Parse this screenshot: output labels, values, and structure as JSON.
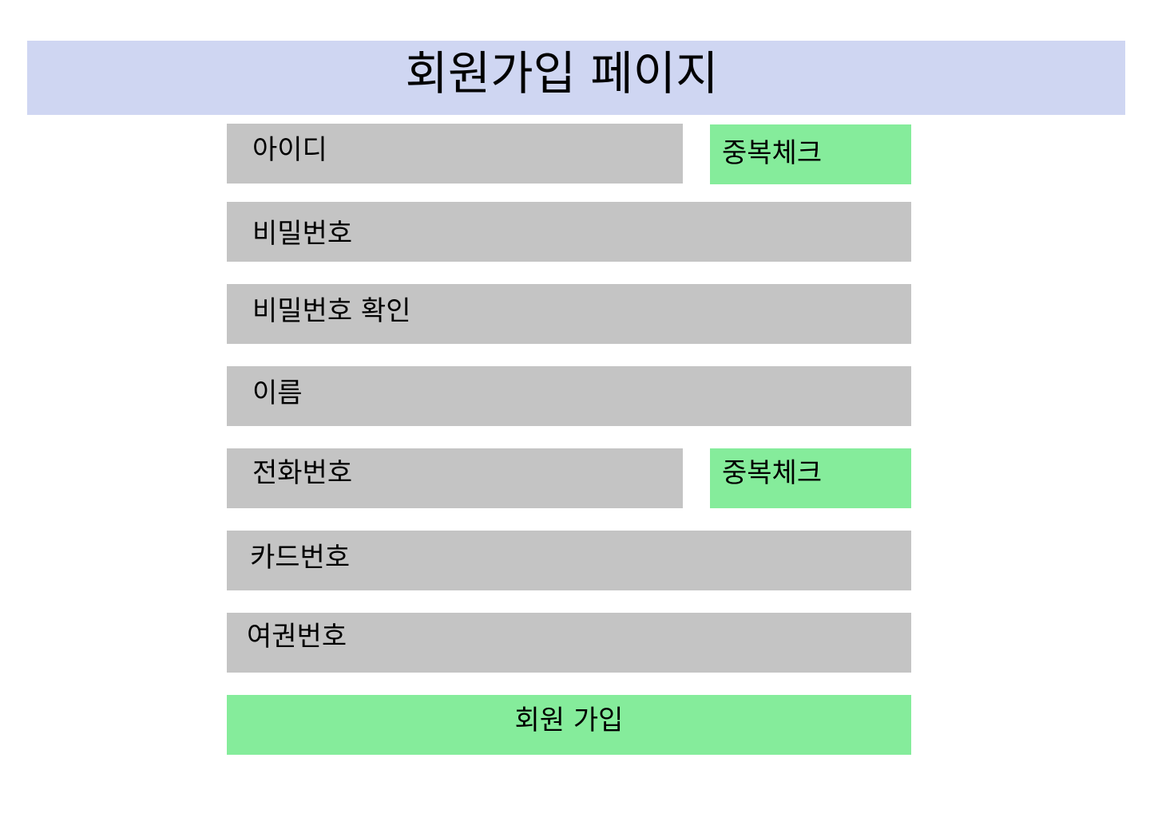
{
  "header": {
    "title": "회원가입 페이지"
  },
  "form": {
    "id_placeholder": "아이디",
    "password_placeholder": "비밀번호",
    "password_confirm_placeholder": "비밀번호 확인",
    "name_placeholder": "이름",
    "phone_placeholder": "전화번호",
    "card_placeholder": "카드번호",
    "passport_placeholder": "여권번호"
  },
  "buttons": {
    "id_duplicate_check": "중복체크",
    "phone_duplicate_check": "중복체크",
    "signup": "회원 가입"
  },
  "colors": {
    "header_background": "#cfd6f2",
    "field_background": "#c4c4c4",
    "button_background": "#85ec9b"
  }
}
